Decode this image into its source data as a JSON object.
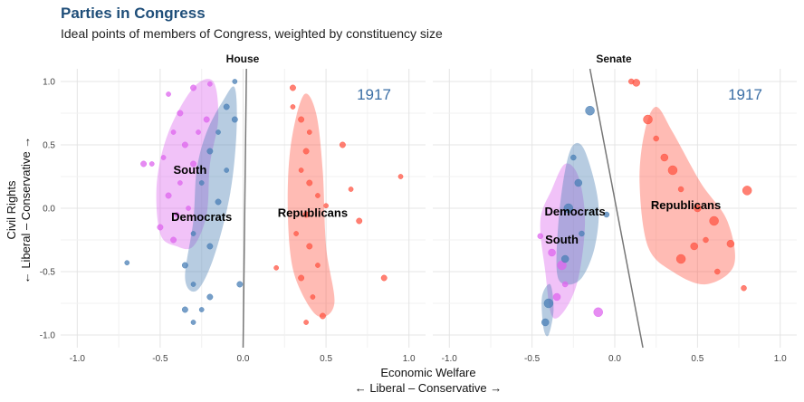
{
  "title": "Parties in Congress",
  "subtitle": "Ideal points of members of Congress, weighted by constituency size",
  "x_axis_label": "Economic Welfare",
  "x_axis_sublabel": "← Liberal – Conservative →",
  "y_axis_label": "Civil Rights",
  "y_axis_sublabel": "← Liberal – Conservative →",
  "colors": {
    "south": "#dd66ee",
    "democrats": "#4a7fb5",
    "republicans": "#ff5544",
    "year": "#3a6ea5"
  },
  "chart_data": [
    {
      "type": "scatter",
      "panel": "House",
      "year_label": "1917",
      "xlim": [
        -1.1,
        1.1
      ],
      "ylim": [
        -1.1,
        1.1
      ],
      "x_ticks": [
        "-1.0",
        "-0.5",
        "0.0",
        "0.5",
        "1.0"
      ],
      "y_ticks": [
        "1.0",
        "0.5",
        "0.0",
        "-0.5",
        "-1.0"
      ],
      "group_labels": [
        {
          "text": "South",
          "x": -0.32,
          "y": 0.3
        },
        {
          "text": "Democrats",
          "x": -0.25,
          "y": -0.07
        },
        {
          "text": "Republicans",
          "x": 0.42,
          "y": -0.04
        }
      ],
      "divider": {
        "x1": 0.0,
        "y1": -1.1,
        "x2": 0.02,
        "y2": 1.1
      },
      "density_regions": [
        {
          "group": "south",
          "points": [
            [
              -0.5,
              -0.2
            ],
            [
              -0.52,
              0.2
            ],
            [
              -0.45,
              0.6
            ],
            [
              -0.3,
              0.95
            ],
            [
              -0.18,
              1.0
            ],
            [
              -0.15,
              0.7
            ],
            [
              -0.2,
              0.35
            ],
            [
              -0.22,
              -0.05
            ],
            [
              -0.3,
              -0.3
            ],
            [
              -0.4,
              -0.3
            ]
          ]
        },
        {
          "group": "democrats",
          "points": [
            [
              -0.35,
              -0.55
            ],
            [
              -0.3,
              -0.1
            ],
            [
              -0.28,
              0.3
            ],
            [
              -0.22,
              0.6
            ],
            [
              -0.12,
              0.85
            ],
            [
              -0.05,
              0.95
            ],
            [
              -0.04,
              0.6
            ],
            [
              -0.08,
              0.1
            ],
            [
              -0.18,
              -0.4
            ],
            [
              -0.28,
              -0.65
            ]
          ]
        },
        {
          "group": "republicans",
          "points": [
            [
              0.28,
              -0.3
            ],
            [
              0.27,
              0.2
            ],
            [
              0.3,
              0.6
            ],
            [
              0.37,
              0.9
            ],
            [
              0.44,
              0.75
            ],
            [
              0.48,
              0.3
            ],
            [
              0.5,
              -0.3
            ],
            [
              0.55,
              -0.75
            ],
            [
              0.45,
              -0.85
            ],
            [
              0.33,
              -0.6
            ]
          ]
        }
      ],
      "series": [
        {
          "name": "South",
          "group": "south",
          "points": [
            [
              -0.45,
              0.9
            ],
            [
              -0.3,
              0.95
            ],
            [
              -0.2,
              0.98
            ],
            [
              -0.38,
              0.75
            ],
            [
              -0.42,
              0.6
            ],
            [
              -0.35,
              0.5
            ],
            [
              -0.48,
              0.4
            ],
            [
              -0.3,
              0.35
            ],
            [
              -0.38,
              0.2
            ],
            [
              -0.45,
              0.1
            ],
            [
              -0.4,
              -0.05
            ],
            [
              -0.5,
              -0.15
            ],
            [
              -0.55,
              0.35
            ],
            [
              -0.6,
              0.35
            ],
            [
              -0.27,
              0.6
            ],
            [
              -0.22,
              0.7
            ],
            [
              -0.33,
              0.0
            ],
            [
              -0.42,
              -0.25
            ]
          ]
        },
        {
          "name": "Democrats",
          "group": "democrats",
          "points": [
            [
              -0.05,
              1.0
            ],
            [
              -0.1,
              0.8
            ],
            [
              -0.15,
              0.6
            ],
            [
              -0.2,
              0.45
            ],
            [
              -0.25,
              0.2
            ],
            [
              -0.15,
              0.05
            ],
            [
              -0.3,
              -0.2
            ],
            [
              -0.35,
              -0.45
            ],
            [
              -0.3,
              -0.6
            ],
            [
              -0.2,
              -0.3
            ],
            [
              -0.1,
              0.3
            ],
            [
              -0.05,
              0.7
            ],
            [
              -0.7,
              -0.43
            ],
            [
              -0.35,
              -0.8
            ],
            [
              -0.3,
              -0.9
            ],
            [
              -0.2,
              -0.7
            ],
            [
              -0.25,
              -0.8
            ],
            [
              -0.02,
              -0.6
            ]
          ]
        },
        {
          "name": "Republicans",
          "group": "republicans",
          "points": [
            [
              0.3,
              0.8
            ],
            [
              0.35,
              0.7
            ],
            [
              0.4,
              0.6
            ],
            [
              0.38,
              0.45
            ],
            [
              0.35,
              0.3
            ],
            [
              0.4,
              0.2
            ],
            [
              0.45,
              0.1
            ],
            [
              0.38,
              -0.05
            ],
            [
              0.32,
              -0.2
            ],
            [
              0.4,
              -0.3
            ],
            [
              0.45,
              -0.45
            ],
            [
              0.35,
              -0.55
            ],
            [
              0.42,
              -0.7
            ],
            [
              0.48,
              -0.85
            ],
            [
              0.38,
              -0.9
            ],
            [
              0.6,
              0.5
            ],
            [
              0.65,
              0.15
            ],
            [
              0.7,
              -0.1
            ],
            [
              0.95,
              0.25
            ],
            [
              0.85,
              -0.55
            ],
            [
              0.2,
              -0.47
            ],
            [
              0.3,
              0.95
            ],
            [
              0.5,
              0.02
            ]
          ]
        }
      ]
    },
    {
      "type": "scatter",
      "panel": "Senate",
      "year_label": "1917",
      "xlim": [
        -1.1,
        1.1
      ],
      "ylim": [
        -1.1,
        1.1
      ],
      "x_ticks": [
        "-1.0",
        "-0.5",
        "0.0",
        "0.5",
        "1.0"
      ],
      "y_ticks": [],
      "group_labels": [
        {
          "text": "Democrats",
          "x": -0.24,
          "y": -0.03
        },
        {
          "text": "South",
          "x": -0.32,
          "y": -0.25
        },
        {
          "text": "Republicans",
          "x": 0.43,
          "y": 0.02
        }
      ],
      "divider": {
        "x1": -0.15,
        "y1": 1.1,
        "x2": 0.17,
        "y2": -1.1
      },
      "density_regions": [
        {
          "group": "south",
          "points": [
            [
              -0.42,
              -0.5
            ],
            [
              -0.45,
              -0.1
            ],
            [
              -0.38,
              0.15
            ],
            [
              -0.3,
              0.35
            ],
            [
              -0.22,
              0.25
            ],
            [
              -0.18,
              -0.1
            ],
            [
              -0.22,
              -0.55
            ],
            [
              -0.3,
              -0.8
            ],
            [
              -0.38,
              -0.85
            ]
          ]
        },
        {
          "group": "democrats",
          "points": [
            [
              -0.35,
              -0.5
            ],
            [
              -0.34,
              -0.1
            ],
            [
              -0.3,
              0.3
            ],
            [
              -0.25,
              0.5
            ],
            [
              -0.18,
              0.45
            ],
            [
              -0.1,
              0.05
            ],
            [
              -0.12,
              -0.3
            ],
            [
              -0.2,
              -0.55
            ],
            [
              -0.3,
              -0.6
            ]
          ]
        },
        {
          "group": "democrats",
          "points": [
            [
              -0.43,
              -0.95
            ],
            [
              -0.44,
              -0.7
            ],
            [
              -0.39,
              -0.6
            ],
            [
              -0.37,
              -0.8
            ],
            [
              -0.4,
              -1.0
            ]
          ]
        },
        {
          "group": "republicans",
          "points": [
            [
              0.18,
              0.6
            ],
            [
              0.15,
              0.2
            ],
            [
              0.2,
              -0.3
            ],
            [
              0.35,
              -0.5
            ],
            [
              0.55,
              -0.6
            ],
            [
              0.72,
              -0.45
            ],
            [
              0.68,
              -0.1
            ],
            [
              0.52,
              0.2
            ],
            [
              0.35,
              0.6
            ],
            [
              0.25,
              0.8
            ]
          ]
        }
      ],
      "series": [
        {
          "name": "South",
          "group": "south",
          "points": [
            [
              -0.45,
              -0.22
            ],
            [
              -0.38,
              -0.35
            ],
            [
              -0.32,
              -0.45
            ],
            [
              -0.3,
              -0.6
            ],
            [
              -0.35,
              -0.7
            ],
            [
              -0.1,
              -0.82
            ]
          ]
        },
        {
          "name": "Democrats",
          "group": "democrats",
          "points": [
            [
              -0.25,
              0.4
            ],
            [
              -0.22,
              0.2
            ],
            [
              -0.28,
              0.0
            ],
            [
              -0.2,
              -0.2
            ],
            [
              -0.3,
              -0.4
            ],
            [
              -0.15,
              0.77
            ],
            [
              -0.05,
              -0.05
            ],
            [
              -0.42,
              -0.9
            ],
            [
              -0.4,
              -0.75
            ]
          ]
        },
        {
          "name": "Republicans",
          "group": "republicans",
          "points": [
            [
              0.1,
              1.0
            ],
            [
              0.13,
              0.99
            ],
            [
              0.2,
              0.7
            ],
            [
              0.25,
              0.55
            ],
            [
              0.3,
              0.4
            ],
            [
              0.35,
              0.3
            ],
            [
              0.4,
              0.15
            ],
            [
              0.5,
              0.0
            ],
            [
              0.6,
              -0.1
            ],
            [
              0.55,
              -0.25
            ],
            [
              0.48,
              -0.3
            ],
            [
              0.4,
              -0.4
            ],
            [
              0.62,
              -0.5
            ],
            [
              0.7,
              -0.28
            ],
            [
              0.8,
              0.14
            ],
            [
              0.78,
              -0.63
            ]
          ]
        }
      ]
    }
  ]
}
